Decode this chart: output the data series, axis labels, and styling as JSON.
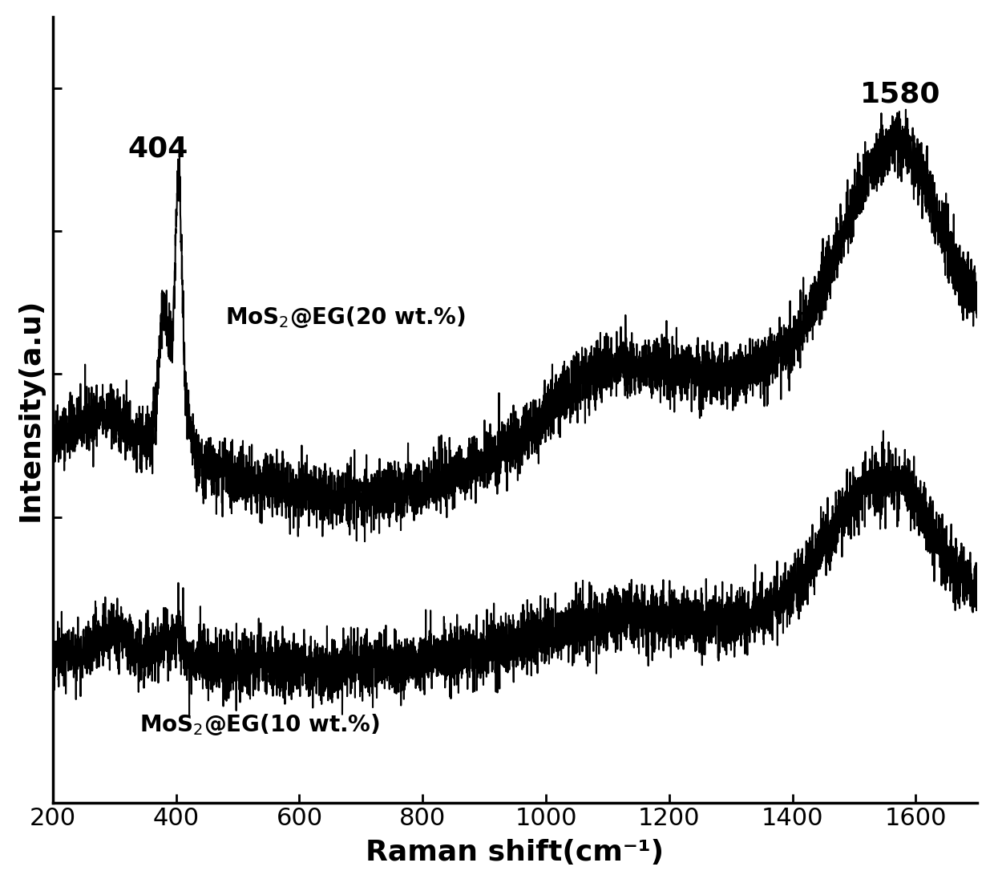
{
  "xlabel": "Raman shift(cm⁻¹)",
  "ylabel": "Intensity(a.u)",
  "x_min": 200,
  "x_max": 1700,
  "x_ticks": [
    200,
    400,
    600,
    800,
    1000,
    1200,
    1400,
    1600
  ],
  "label_20": "MoS$_2$@EG(20 wt.%)",
  "label_10": "MoS$_2$@EG(10 wt.%)",
  "annotation_404": "404",
  "annotation_1580": "1580",
  "seed": 42,
  "background_color": "#ffffff",
  "line_color": "#000000",
  "line_width": 1.5,
  "axis_label_fontsize": 26,
  "tick_fontsize": 22,
  "annotation_fontsize": 26,
  "curve_label_fontsize": 20
}
